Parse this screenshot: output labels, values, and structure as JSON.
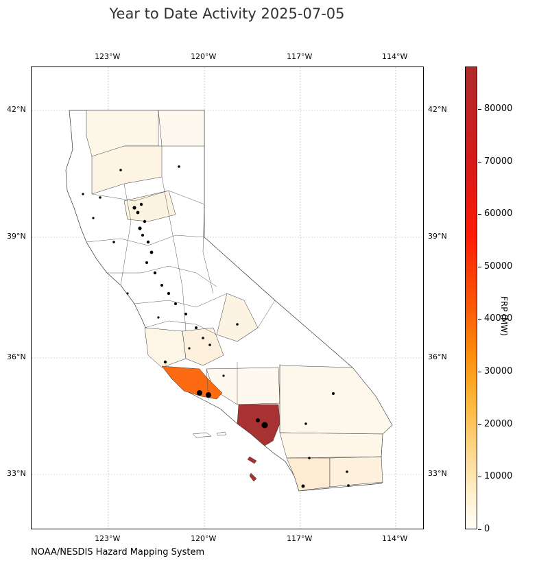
{
  "title": "Year to Date Activity 2025-07-05",
  "source": "NOAA/NESDIS Hazard Mapping System",
  "map": {
    "lon_ticks": [
      "123°W",
      "120°W",
      "117°W",
      "114°W"
    ],
    "lat_ticks": [
      "42°N",
      "39°N",
      "36°N",
      "33°N"
    ]
  },
  "colorbar": {
    "title": "FRP (MW)",
    "ticks": [
      "80000",
      "70000",
      "60000",
      "50000",
      "40000",
      "30000",
      "20000",
      "10000",
      "0"
    ],
    "colors": [
      "#fffff8",
      "#fff0c8",
      "#fed990",
      "#fdb636",
      "#fd8d0a",
      "#fb5a06",
      "#fd1a05",
      "#d41a1a",
      "#b02a2a"
    ]
  }
}
